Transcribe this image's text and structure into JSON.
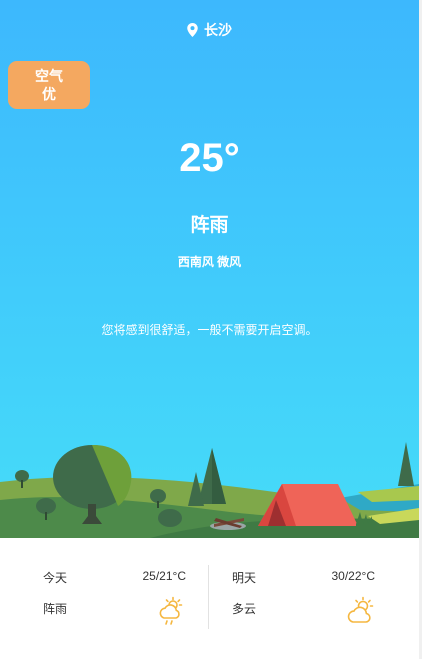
{
  "location": {
    "city": "长沙",
    "icon": "location-pin-icon"
  },
  "air_quality": {
    "label": "空气",
    "level": "优",
    "color": "#f4a860"
  },
  "current": {
    "temperature": "25°",
    "condition": "阵雨",
    "wind": "西南风 微风",
    "advice": "您将感到很舒适，一般不需要开启空调。"
  },
  "forecast": [
    {
      "day": "今天",
      "range": "25/21°C",
      "condition": "阵雨",
      "icon": "shower-rain-icon"
    },
    {
      "day": "明天",
      "range": "30/22°C",
      "condition": "多云",
      "icon": "partly-cloudy-icon"
    }
  ],
  "colors": {
    "sky_top": "#3db8fd",
    "sky_bottom": "#46dcf8",
    "icon_orange": "#f5b740"
  }
}
